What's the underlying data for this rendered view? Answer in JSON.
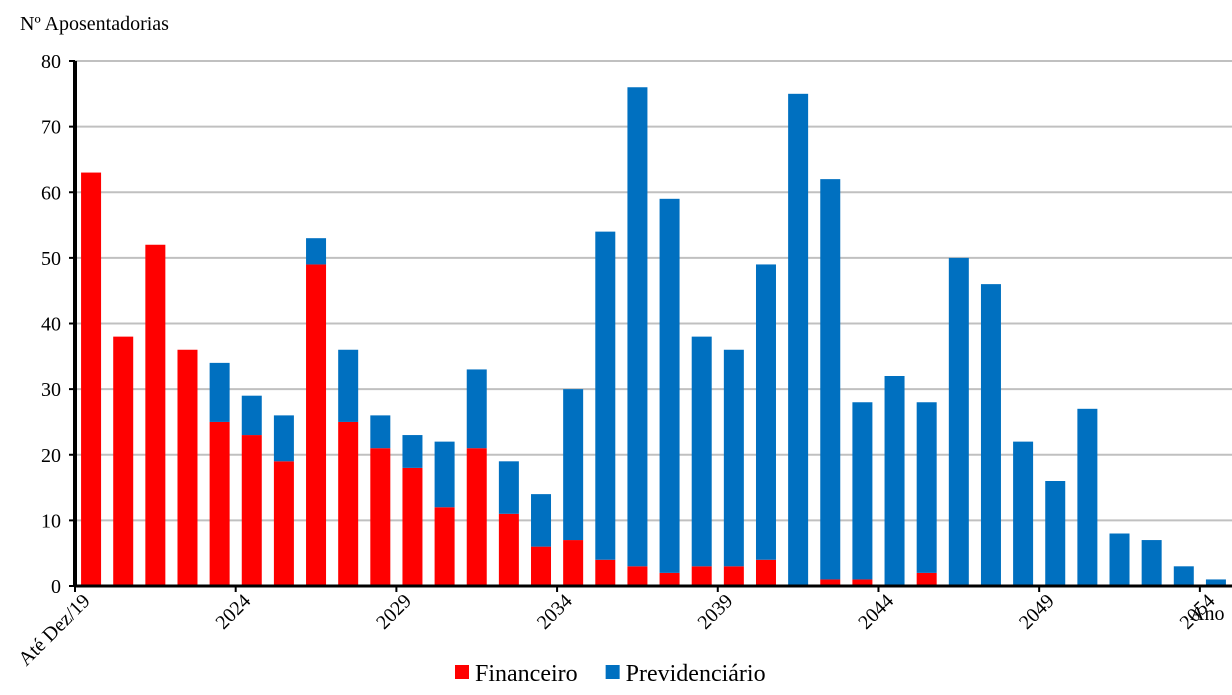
{
  "chart_data": {
    "type": "stacked_bar",
    "y_label": "Nº Aposentadorias",
    "x_label": "Ano",
    "categories": [
      "Até Dez/19",
      null,
      null,
      null,
      null,
      "2024",
      null,
      null,
      null,
      null,
      "2029",
      null,
      null,
      null,
      null,
      "2034",
      null,
      null,
      null,
      null,
      "2039",
      null,
      null,
      null,
      null,
      "2044",
      null,
      null,
      null,
      null,
      "2049",
      null,
      null,
      null,
      null,
      "2054"
    ],
    "series": [
      {
        "name": "Financeiro",
        "color": "#ff0000",
        "values": [
          63,
          38,
          52,
          36,
          25,
          23,
          19,
          49,
          25,
          21,
          18,
          12,
          21,
          11,
          6,
          7,
          4,
          3,
          2,
          3,
          3,
          4,
          0,
          1,
          1,
          0,
          2,
          0,
          0,
          0,
          0,
          0,
          0,
          0,
          0,
          0
        ]
      },
      {
        "name": "Previdenciário",
        "color": "#0070c0",
        "values": [
          0,
          0,
          0,
          0,
          9,
          6,
          7,
          4,
          11,
          5,
          5,
          10,
          12,
          8,
          8,
          23,
          50,
          73,
          57,
          35,
          33,
          45,
          75,
          61,
          27,
          32,
          26,
          50,
          46,
          22,
          16,
          27,
          8,
          7,
          3,
          1
        ]
      }
    ],
    "ylim": [
      0,
      80
    ],
    "yticks": [
      0,
      10,
      20,
      30,
      40,
      50,
      60,
      70,
      80
    ],
    "grid": true,
    "legend": "bottom"
  }
}
